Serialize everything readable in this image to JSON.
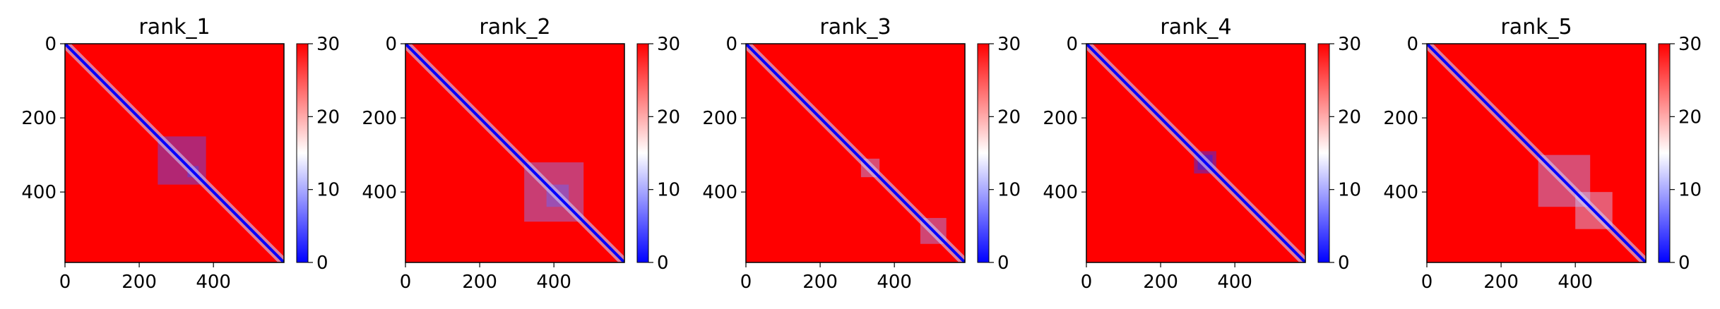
{
  "chart_data": [
    {
      "type": "heatmap",
      "title": "rank_1",
      "xticks": [
        0,
        200,
        400
      ],
      "yticks": [
        0,
        200,
        400
      ],
      "xlim": [
        0,
        590
      ],
      "ylim": [
        590,
        0
      ],
      "colorbar": {
        "ticks": [
          0,
          10,
          20,
          30
        ],
        "vmin": 0,
        "vmax": 30,
        "cmap": "bwr"
      },
      "blocks": [
        [
          250,
          380,
          5
        ],
        [
          330,
          360,
          4
        ]
      ]
    },
    {
      "type": "heatmap",
      "title": "rank_2",
      "xticks": [
        0,
        200,
        400
      ],
      "yticks": [
        0,
        200,
        400
      ],
      "xlim": [
        0,
        590
      ],
      "ylim": [
        590,
        0
      ],
      "colorbar": {
        "ticks": [
          0,
          10,
          20,
          30
        ],
        "vmin": 0,
        "vmax": 30,
        "cmap": "bwr"
      },
      "blocks": [
        [
          320,
          480,
          8
        ],
        [
          380,
          440,
          6
        ]
      ]
    },
    {
      "type": "heatmap",
      "title": "rank_3",
      "xticks": [
        0,
        200,
        400
      ],
      "yticks": [
        0,
        200,
        400
      ],
      "xlim": [
        0,
        590
      ],
      "ylim": [
        590,
        0
      ],
      "colorbar": {
        "ticks": [
          0,
          10,
          20,
          30
        ],
        "vmin": 0,
        "vmax": 30,
        "cmap": "bwr"
      },
      "blocks": [
        [
          310,
          360,
          10
        ],
        [
          470,
          540,
          9
        ]
      ]
    },
    {
      "type": "heatmap",
      "title": "rank_4",
      "xticks": [
        0,
        200,
        400
      ],
      "yticks": [
        0,
        200,
        400
      ],
      "xlim": [
        0,
        590
      ],
      "ylim": [
        590,
        0
      ],
      "colorbar": {
        "ticks": [
          0,
          10,
          20,
          30
        ],
        "vmin": 0,
        "vmax": 30,
        "cmap": "bwr"
      },
      "blocks": [
        [
          290,
          350,
          3
        ],
        [
          300,
          340,
          2
        ]
      ]
    },
    {
      "type": "heatmap",
      "title": "rank_5",
      "xticks": [
        0,
        200,
        400
      ],
      "yticks": [
        0,
        200,
        400
      ],
      "xlim": [
        0,
        590
      ],
      "ylim": [
        590,
        0
      ],
      "colorbar": {
        "ticks": [
          0,
          10,
          20,
          30
        ],
        "vmin": 0,
        "vmax": 30,
        "cmap": "bwr"
      },
      "blocks": [
        [
          300,
          440,
          10
        ],
        [
          400,
          500,
          12
        ]
      ]
    }
  ],
  "colors": {
    "low": "#0000ff",
    "mid": "#ffffff",
    "high": "#ff0000"
  }
}
